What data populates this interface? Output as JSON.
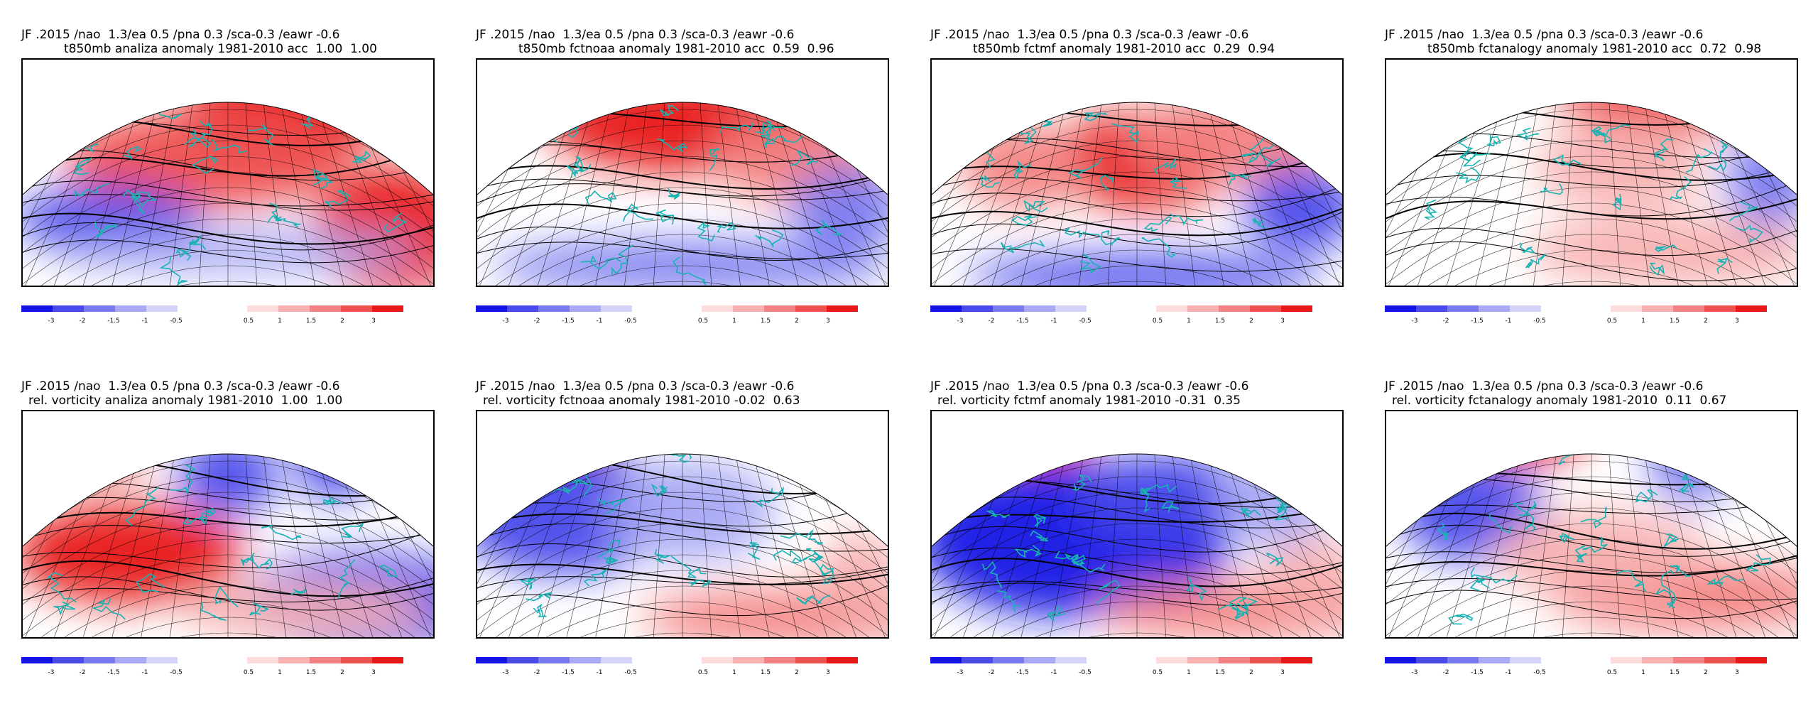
{
  "colorbar": {
    "neg_colors": [
      "#1414e6",
      "#4a4aeb",
      "#7a7af0",
      "#a8a8f4",
      "#d4d4fa"
    ],
    "pos_colors": [
      "#fcdcdc",
      "#f8b0b0",
      "#f38282",
      "#ee5050",
      "#e81818"
    ],
    "neg_labels": [
      "-3",
      "-2",
      "-1.5",
      "-1",
      "-0.5"
    ],
    "pos_labels": [
      "0.5",
      "1",
      "1.5",
      "2",
      "3"
    ]
  },
  "panels": [
    {
      "line1": "JF .2015 /nao  1.3/ea 0.5 /pna 0.3 /sca-0.3 /eawr -0.6",
      "line2": "t850mb analiza anomaly 1981-2010 acc  1.00  1.00"
    },
    {
      "line1": "JF .2015 /nao  1.3/ea 0.5 /pna 0.3 /sca-0.3 /eawr -0.6",
      "line2": "t850mb fctnoaa anomaly 1981-2010 acc  0.59  0.96"
    },
    {
      "line1": "JF .2015 /nao  1.3/ea 0.5 /pna 0.3 /sca-0.3 /eawr -0.6",
      "line2": "t850mb fctmf anomaly 1981-2010 acc  0.29  0.94"
    },
    {
      "line1": "JF .2015 /nao  1.3/ea 0.5 /pna 0.3 /sca-0.3 /eawr -0.6",
      "line2": "t850mb fctanalogy anomaly 1981-2010 acc  0.72  0.98"
    },
    {
      "line1": "JF .2015 /nao  1.3/ea 0.5 /pna 0.3 /sca-0.3 /eawr -0.6",
      "line2": "rel. vorticity analiza anomaly 1981-2010  1.00  1.00"
    },
    {
      "line1": "JF .2015 /nao  1.3/ea 0.5 /pna 0.3 /sca-0.3 /eawr -0.6",
      "line2": "rel. vorticity fctnoaa anomaly 1981-2010 -0.02  0.63"
    },
    {
      "line1": "JF .2015 /nao  1.3/ea 0.5 /pna 0.3 /sca-0.3 /eawr -0.6",
      "line2": "rel. vorticity fctmf anomaly 1981-2010 -0.31  0.35"
    },
    {
      "line1": "JF .2015 /nao  1.3/ea 0.5 /pna 0.3 /sca-0.3 /eawr -0.6",
      "line2": "rel. vorticity fctanalogy anomaly 1981-2010  0.11  0.67"
    }
  ]
}
